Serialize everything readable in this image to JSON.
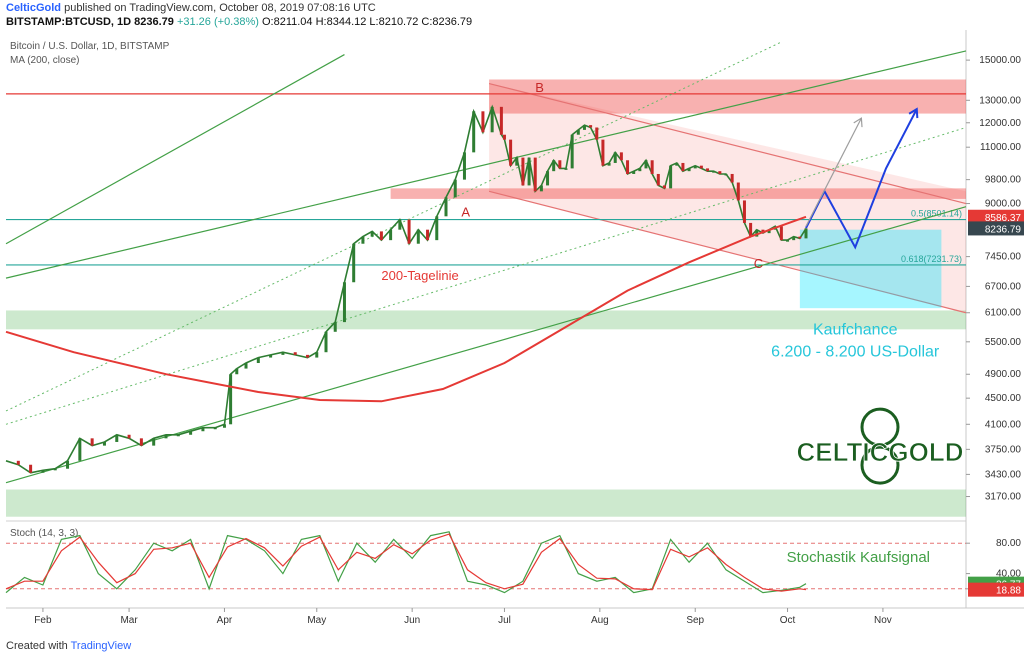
{
  "header": {
    "publisher": "CelticGold",
    "published_text": "published on TradingView.com, October 08, 2019 07:08:16 UTC",
    "symbol": "BITSTAMP:BTCUSD, 1D",
    "last": "8236.79",
    "change": "+31.26 (+0.38%)",
    "ohlc": "O:8211.04 H:8344.12 L:8210.72 C:8236.79"
  },
  "footer": {
    "created_with": "Created with",
    "brand": "TradingView"
  },
  "chart_data": [
    {
      "type": "line",
      "panel": "main",
      "title": "Bitcoin / U.S. Dollar, 1D, BITSTAMP",
      "subtitle": "MA (200, close)",
      "y_scale": "log",
      "ylim": [
        3000,
        16000
      ],
      "y_ticks": [
        15000,
        13000,
        12000,
        11000,
        9800,
        9000,
        7450,
        6700,
        6100,
        5500,
        4900,
        4500,
        4100,
        3750,
        3430,
        3170
      ],
      "y_tick_labels": [
        "15000.00",
        "13000.00",
        "12000.00",
        "11000.00",
        "9800.00",
        "9000.00",
        "7450.00",
        "6700.00",
        "6100.00",
        "5500.00",
        "4900.00",
        "4500.00",
        "4100.00",
        "3750.00",
        "3430.00",
        "3170.00"
      ],
      "x_ticks": [
        "Feb",
        "Mar",
        "Apr",
        "May",
        "Jun",
        "Jul",
        "Aug",
        "Sep",
        "Oct",
        "Nov"
      ],
      "x_tick_day": [
        0,
        28,
        59,
        89,
        120,
        150,
        181,
        212,
        242,
        273
      ],
      "x_range_days": [
        -12,
        300
      ],
      "price_series": {
        "name": "BTCUSD",
        "day": [
          -12,
          -8,
          -4,
          0,
          4,
          8,
          12,
          16,
          20,
          24,
          28,
          32,
          36,
          40,
          44,
          48,
          52,
          56,
          59,
          61,
          63,
          66,
          70,
          74,
          78,
          82,
          86,
          89,
          92,
          95,
          98,
          101,
          104,
          107,
          110,
          113,
          116,
          119,
          122,
          125,
          128,
          131,
          134,
          137,
          140,
          143,
          146,
          149,
          150,
          152,
          154,
          156,
          158,
          160,
          162,
          164,
          166,
          168,
          170,
          172,
          174,
          176,
          178,
          180,
          182,
          184,
          186,
          188,
          190,
          192,
          194,
          196,
          198,
          200,
          202,
          204,
          206,
          208,
          210,
          212,
          214,
          216,
          218,
          220,
          222,
          224,
          226,
          228,
          230,
          232,
          234,
          236,
          238,
          240,
          242,
          244,
          246,
          248
        ],
        "close": [
          3600,
          3550,
          3450,
          3480,
          3500,
          3600,
          3900,
          3800,
          3850,
          3950,
          3900,
          3800,
          3900,
          3950,
          3950,
          4000,
          4050,
          4050,
          4100,
          4900,
          5000,
          5100,
          5200,
          5250,
          5300,
          5250,
          5200,
          5300,
          5700,
          5900,
          6800,
          7800,
          8000,
          8150,
          7900,
          8200,
          8500,
          7800,
          8200,
          7900,
          8600,
          9200,
          9800,
          10800,
          12500,
          11600,
          12700,
          11500,
          11300,
          10300,
          10600,
          9600,
          10600,
          9400,
          9600,
          10100,
          10500,
          10200,
          10200,
          11500,
          11700,
          11900,
          11800,
          11300,
          10300,
          10400,
          10800,
          10500,
          10000,
          10100,
          10200,
          10500,
          10000,
          9600,
          9500,
          10300,
          10400,
          10100,
          10200,
          10300,
          10200,
          10100,
          10100,
          10000,
          10000,
          9700,
          9100,
          8400,
          8000,
          8200,
          8100,
          8200,
          8300,
          7900,
          7900,
          8000,
          7950,
          8236.79
        ]
      },
      "series": [
        {
          "name": "MA (200, close)",
          "day": [
            -12,
            10,
            40,
            70,
            90,
            110,
            130,
            150,
            170,
            190,
            210,
            230,
            248
          ],
          "values": [
            5700,
            5300,
            4900,
            4600,
            4470,
            4450,
            4650,
            5100,
            5800,
            6600,
            7300,
            8000,
            8586.37
          ]
        }
      ],
      "horizontal_lines": [
        {
          "label": "0.5(8501.14)",
          "value": 8501.14
        },
        {
          "label": "0.618(7231.73)",
          "value": 7231.73
        },
        {
          "label": "",
          "value": 13300
        }
      ],
      "zones": [
        {
          "label": "",
          "low": 12400,
          "high": 14000
        },
        {
          "label": "",
          "low": 9150,
          "high": 9500
        },
        {
          "label": "",
          "low": 5750,
          "high": 6150
        },
        {
          "label": "",
          "low": 2950,
          "high": 3250
        }
      ],
      "price_labels": [
        {
          "text": "8586.37",
          "value": 8586.37,
          "color": "#e53935"
        },
        {
          "text": "8236.79",
          "value": 8236.79,
          "color": "#37474f"
        }
      ],
      "annotations": [
        {
          "text": "B",
          "day": 160,
          "value": 13400
        },
        {
          "text": "A",
          "day": 136,
          "value": 8600
        },
        {
          "text": "C",
          "day": 231,
          "value": 7150
        },
        {
          "text": "200-Tagelinie",
          "day": 110,
          "value": 6850
        },
        {
          "text": "Kaufchance",
          "day": 264,
          "value": 5650
        },
        {
          "text": "6.200 - 8.200 US-Dollar",
          "day": 264,
          "value": 5220
        }
      ],
      "buy_zone": {
        "from_day": 246,
        "to_day": 292,
        "low": 6200,
        "high": 8200
      },
      "projections": [
        {
          "name": "blue",
          "day": [
            248,
            254,
            264,
            274,
            284
          ],
          "values": [
            8250,
            9400,
            7700,
            10200,
            12600
          ]
        },
        {
          "name": "grey",
          "day": [
            248,
            266
          ],
          "values": [
            8300,
            12200
          ]
        }
      ],
      "watermark": "CELTICGOLD"
    },
    {
      "type": "line",
      "panel": "oscillator",
      "title": "Stoch (14, 3, 3)",
      "ylim": [
        0,
        100
      ],
      "y_ticks": [
        80,
        40,
        20
      ],
      "y_tick_labels": [
        "80.00",
        "40.00",
        "20.00"
      ],
      "levels": [
        80,
        20
      ],
      "series": [
        {
          "name": "%K",
          "day": [
            -12,
            -6,
            0,
            6,
            12,
            18,
            24,
            30,
            36,
            42,
            48,
            54,
            60,
            66,
            72,
            78,
            84,
            90,
            96,
            102,
            108,
            114,
            120,
            126,
            132,
            138,
            144,
            150,
            156,
            162,
            168,
            174,
            180,
            186,
            192,
            198,
            204,
            210,
            216,
            222,
            228,
            234,
            240,
            246,
            248
          ],
          "values": [
            15,
            35,
            25,
            85,
            90,
            40,
            20,
            45,
            80,
            70,
            85,
            20,
            90,
            85,
            70,
            40,
            85,
            90,
            30,
            80,
            55,
            85,
            60,
            90,
            95,
            30,
            25,
            15,
            30,
            80,
            90,
            40,
            30,
            35,
            15,
            20,
            85,
            55,
            80,
            45,
            30,
            15,
            18,
            22,
            26.77
          ]
        },
        {
          "name": "%D",
          "day": [
            -12,
            -6,
            0,
            6,
            12,
            18,
            24,
            30,
            36,
            42,
            48,
            54,
            60,
            66,
            72,
            78,
            84,
            90,
            96,
            102,
            108,
            114,
            120,
            126,
            132,
            138,
            144,
            150,
            156,
            162,
            168,
            174,
            180,
            186,
            192,
            198,
            204,
            210,
            216,
            222,
            228,
            234,
            240,
            246,
            248
          ],
          "values": [
            20,
            30,
            30,
            70,
            88,
            55,
            28,
            40,
            72,
            74,
            80,
            35,
            75,
            86,
            74,
            50,
            76,
            88,
            45,
            68,
            60,
            78,
            66,
            84,
            92,
            45,
            28,
            20,
            26,
            68,
            86,
            52,
            34,
            33,
            20,
            19,
            72,
            62,
            74,
            52,
            35,
            20,
            17,
            20,
            18.88
          ]
        }
      ],
      "value_labels": [
        {
          "text": "26.77",
          "value": 26.77,
          "color": "#43a047"
        },
        {
          "text": "18.88",
          "value": 18.88,
          "color": "#e53935"
        }
      ],
      "annotations": [
        {
          "text": "Stochastik Kaufsignal",
          "day": 265,
          "value": 55
        }
      ]
    }
  ]
}
